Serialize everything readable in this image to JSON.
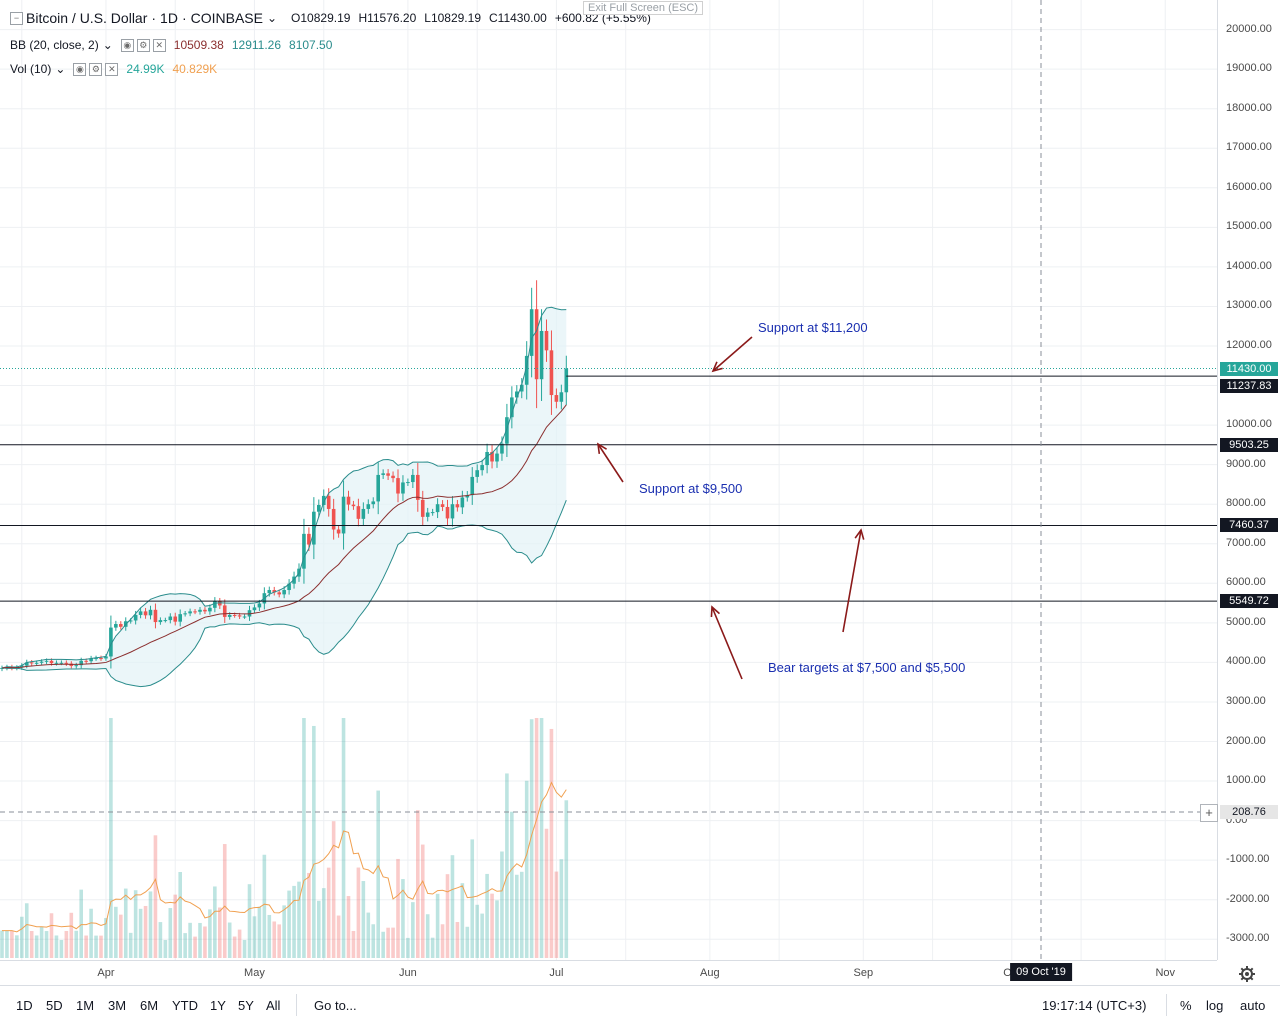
{
  "header": {
    "symbol": "Bitcoin / U.S. Dollar",
    "timeframe": "1D",
    "exchange": "COINBASE",
    "open": "O10829.19",
    "high": "H11576.20",
    "low": "L10829.19",
    "close": "C11430.00",
    "change": "+600.82 (+5.55%)",
    "exit_fullscreen": "Exit Full Screen (ESC)"
  },
  "indicators": {
    "bb": {
      "label": "BB (20, close, 2)",
      "basis": "10509.38",
      "upper": "12911.26",
      "lower": "8107.50"
    },
    "vol": {
      "label": "Vol (10)",
      "value": "24.99K",
      "ma": "40.829K"
    }
  },
  "price_axis": {
    "ticks": [
      "20000.00",
      "19000.00",
      "18000.00",
      "17000.00",
      "16000.00",
      "15000.00",
      "14000.00",
      "13000.00",
      "12000.00",
      "11000.00",
      "10000.00",
      "9000.00",
      "8000.00",
      "7000.00",
      "6000.00",
      "5000.00",
      "4000.00",
      "3000.00",
      "2000.00",
      "1000.00",
      "0.00",
      "-1000.00",
      "-2000.00",
      "-3000.00"
    ],
    "labels": {
      "last_price": "11430.00",
      "line_11237": "11237.83",
      "line_9503": "9503.25",
      "line_7460": "7460.37",
      "line_5549": "5549.72",
      "crosshair": "208.76"
    }
  },
  "time_axis": {
    "ticks": [
      "Apr",
      "May",
      "Jun",
      "Jul",
      "Aug",
      "Sep",
      "Oct",
      "Nov"
    ],
    "crosshair_date": "09 Oct '19"
  },
  "annotations": {
    "support_11200": "Support at $11,200",
    "support_9500": "Support at $9,500",
    "bear_targets": "Bear targets at $7,500 and $5,500"
  },
  "bottom_bar": {
    "timeframes": [
      "1D",
      "5D",
      "1M",
      "3M",
      "6M",
      "YTD",
      "1Y",
      "5Y",
      "All"
    ],
    "goto": "Go to...",
    "clock": "19:17:14 (UTC+3)",
    "percent": "%",
    "log": "log",
    "auto": "auto"
  },
  "colors": {
    "up": "#26a69a",
    "down": "#ef5350",
    "bb_fill": "#e3f2f6",
    "bb_band": "#2a8c8c",
    "bb_basis": "#8b2f2f",
    "vol_ma": "#f0a050",
    "annotation_arrow": "#8b1a1a",
    "annotation_text": "#1a2fb0"
  },
  "chart_data": {
    "type": "candlestick",
    "x_range": [
      "2019-03-11",
      "2019-11-21"
    ],
    "y_range": [
      -3500,
      20500
    ],
    "log_scale": false,
    "grid": true,
    "horizontal_lines": [
      11237.83,
      9503.25,
      7460.37,
      5549.72
    ],
    "last_price": 11430.0,
    "candles": [
      {
        "date": "2019-03-11",
        "c": 3860
      },
      {
        "date": "2019-03-12",
        "c": 3880
      },
      {
        "date": "2019-03-13",
        "c": 3860
      },
      {
        "date": "2019-03-14",
        "c": 3870
      },
      {
        "date": "2019-03-15",
        "c": 3920
      },
      {
        "date": "2019-03-16",
        "c": 4000
      },
      {
        "date": "2019-03-17",
        "c": 3980
      },
      {
        "date": "2019-03-18",
        "c": 3990
      },
      {
        "date": "2019-03-19",
        "c": 4020
      },
      {
        "date": "2019-03-20",
        "c": 4040
      },
      {
        "date": "2019-03-21",
        "c": 3980
      },
      {
        "date": "2019-03-22",
        "c": 3990
      },
      {
        "date": "2019-03-23",
        "c": 3990
      },
      {
        "date": "2019-03-24",
        "c": 3970
      },
      {
        "date": "2019-03-25",
        "c": 3910
      },
      {
        "date": "2019-03-26",
        "c": 3930
      },
      {
        "date": "2019-03-27",
        "c": 4040
      },
      {
        "date": "2019-03-28",
        "c": 4030
      },
      {
        "date": "2019-03-29",
        "c": 4100
      },
      {
        "date": "2019-03-30",
        "c": 4110
      },
      {
        "date": "2019-03-31",
        "c": 4100
      },
      {
        "date": "2019-04-01",
        "c": 4150
      },
      {
        "date": "2019-04-02",
        "c": 4880
      },
      {
        "date": "2019-04-03",
        "c": 4970
      },
      {
        "date": "2019-04-04",
        "c": 4900
      },
      {
        "date": "2019-04-05",
        "c": 5040
      },
      {
        "date": "2019-04-06",
        "c": 5060
      },
      {
        "date": "2019-04-07",
        "c": 5200
      },
      {
        "date": "2019-04-08",
        "c": 5290
      },
      {
        "date": "2019-04-09",
        "c": 5190
      },
      {
        "date": "2019-04-10",
        "c": 5330
      },
      {
        "date": "2019-04-11",
        "c": 5020
      },
      {
        "date": "2019-04-12",
        "c": 5070
      },
      {
        "date": "2019-04-13",
        "c": 5070
      },
      {
        "date": "2019-04-14",
        "c": 5160
      },
      {
        "date": "2019-04-15",
        "c": 5030
      },
      {
        "date": "2019-04-16",
        "c": 5220
      },
      {
        "date": "2019-04-17",
        "c": 5240
      },
      {
        "date": "2019-04-18",
        "c": 5290
      },
      {
        "date": "2019-04-19",
        "c": 5280
      },
      {
        "date": "2019-04-20",
        "c": 5330
      },
      {
        "date": "2019-04-21",
        "c": 5290
      },
      {
        "date": "2019-04-22",
        "c": 5380
      },
      {
        "date": "2019-04-23",
        "c": 5540
      },
      {
        "date": "2019-04-24",
        "c": 5440
      },
      {
        "date": "2019-04-25",
        "c": 5150
      },
      {
        "date": "2019-04-26",
        "c": 5200
      },
      {
        "date": "2019-04-27",
        "c": 5190
      },
      {
        "date": "2019-04-28",
        "c": 5160
      },
      {
        "date": "2019-04-29",
        "c": 5160
      },
      {
        "date": "2019-04-30",
        "c": 5320
      },
      {
        "date": "2019-05-01",
        "c": 5390
      },
      {
        "date": "2019-05-02",
        "c": 5490
      },
      {
        "date": "2019-05-03",
        "c": 5750
      },
      {
        "date": "2019-05-04",
        "c": 5830
      },
      {
        "date": "2019-05-05",
        "c": 5770
      },
      {
        "date": "2019-05-06",
        "c": 5720
      },
      {
        "date": "2019-05-07",
        "c": 5830
      },
      {
        "date": "2019-05-08",
        "c": 5990
      },
      {
        "date": "2019-05-09",
        "c": 6170
      },
      {
        "date": "2019-05-10",
        "c": 6370
      },
      {
        "date": "2019-05-11",
        "c": 7250
      },
      {
        "date": "2019-05-12",
        "c": 6980
      },
      {
        "date": "2019-05-13",
        "c": 7810
      },
      {
        "date": "2019-05-14",
        "c": 7980
      },
      {
        "date": "2019-05-15",
        "c": 8210
      },
      {
        "date": "2019-05-16",
        "c": 7880
      },
      {
        "date": "2019-05-17",
        "c": 7360
      },
      {
        "date": "2019-05-18",
        "c": 7260
      },
      {
        "date": "2019-05-19",
        "c": 8190
      },
      {
        "date": "2019-05-20",
        "c": 7990
      },
      {
        "date": "2019-05-21",
        "c": 7950
      },
      {
        "date": "2019-05-22",
        "c": 7630
      },
      {
        "date": "2019-05-23",
        "c": 7880
      },
      {
        "date": "2019-05-24",
        "c": 8000
      },
      {
        "date": "2019-05-25",
        "c": 8070
      },
      {
        "date": "2019-05-26",
        "c": 8740
      },
      {
        "date": "2019-05-27",
        "c": 8780
      },
      {
        "date": "2019-05-28",
        "c": 8720
      },
      {
        "date": "2019-05-29",
        "c": 8660
      },
      {
        "date": "2019-05-30",
        "c": 8270
      },
      {
        "date": "2019-05-31",
        "c": 8550
      },
      {
        "date": "2019-06-01",
        "c": 8560
      },
      {
        "date": "2019-06-02",
        "c": 8740
      },
      {
        "date": "2019-06-03",
        "c": 8110
      },
      {
        "date": "2019-06-04",
        "c": 7680
      },
      {
        "date": "2019-06-05",
        "c": 7790
      },
      {
        "date": "2019-06-06",
        "c": 7800
      },
      {
        "date": "2019-06-07",
        "c": 8000
      },
      {
        "date": "2019-06-08",
        "c": 7930
      },
      {
        "date": "2019-06-09",
        "c": 7640
      },
      {
        "date": "2019-06-10",
        "c": 8000
      },
      {
        "date": "2019-06-11",
        "c": 7920
      },
      {
        "date": "2019-06-12",
        "c": 8170
      },
      {
        "date": "2019-06-13",
        "c": 8230
      },
      {
        "date": "2019-06-14",
        "c": 8690
      },
      {
        "date": "2019-06-15",
        "c": 8860
      },
      {
        "date": "2019-06-16",
        "c": 8990
      },
      {
        "date": "2019-06-17",
        "c": 9320
      },
      {
        "date": "2019-06-18",
        "c": 9080
      },
      {
        "date": "2019-06-19",
        "c": 9280
      },
      {
        "date": "2019-06-20",
        "c": 9530
      },
      {
        "date": "2019-06-21",
        "c": 10200
      },
      {
        "date": "2019-06-22",
        "c": 10700
      },
      {
        "date": "2019-06-23",
        "c": 10850
      },
      {
        "date": "2019-06-24",
        "c": 11020
      },
      {
        "date": "2019-06-25",
        "c": 11750
      },
      {
        "date": "2019-06-26",
        "c": 12930
      },
      {
        "date": "2019-06-27",
        "c": 11160
      },
      {
        "date": "2019-06-28",
        "c": 12380
      },
      {
        "date": "2019-06-29",
        "c": 11890
      },
      {
        "date": "2019-06-30",
        "c": 10760
      },
      {
        "date": "2019-07-01",
        "c": 10590
      },
      {
        "date": "2019-07-02",
        "c": 10830
      },
      {
        "date": "2019-07-03",
        "c": 11430
      }
    ]
  }
}
